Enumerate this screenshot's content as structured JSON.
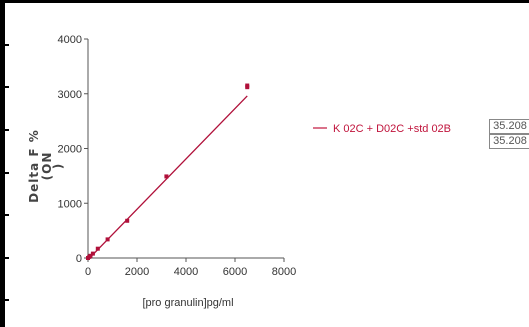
{
  "chart_data": {
    "type": "scatter",
    "title": "",
    "xlabel": "[pro granulin]pg/ml",
    "ylabel_lines": [
      "Delta F %",
      "(ON",
      ")"
    ],
    "xlim": [
      0,
      8000
    ],
    "ylim": [
      0,
      4000
    ],
    "x_ticks": [
      "0",
      "2000",
      "4000",
      "6000",
      "8000"
    ],
    "y_ticks": [
      "0",
      "1000",
      "2000",
      "3000",
      "4000"
    ],
    "grid": false,
    "legend_position": "right",
    "series": [
      {
        "name": "K 02C + D02C +std 02B",
        "color": "#b0103a",
        "points": [
          {
            "x": 0,
            "y": 0
          },
          {
            "x": 50,
            "y": 20
          },
          {
            "x": 100,
            "y": 40
          },
          {
            "x": 200,
            "y": 80
          },
          {
            "x": 400,
            "y": 170
          },
          {
            "x": 800,
            "y": 340
          },
          {
            "x": 1600,
            "y": 680
          },
          {
            "x": 3200,
            "y": 1490
          },
          {
            "x": 6500,
            "y": 3120
          },
          {
            "x": 6500,
            "y": 3150
          }
        ],
        "fit": {
          "x0": 0,
          "y0": -30,
          "x1": 6500,
          "y1": 2960
        }
      }
    ]
  },
  "value_boxes": [
    "35.208",
    "35.208"
  ]
}
